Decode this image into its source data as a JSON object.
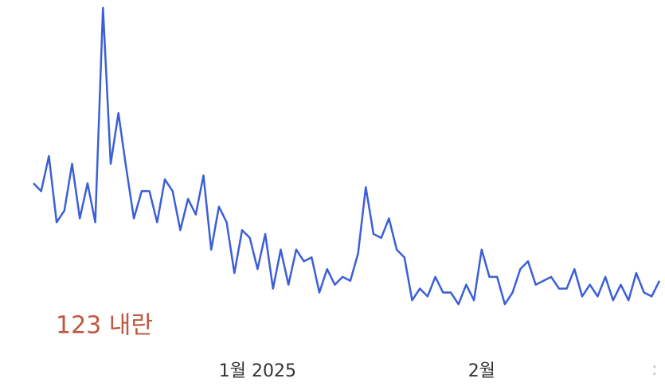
{
  "chart_data": {
    "type": "line",
    "annotation": "123 내란",
    "edge_label": ":",
    "categories": [
      null,
      null,
      null,
      null,
      null,
      null,
      null,
      null,
      null,
      null,
      null,
      null,
      null,
      null,
      null,
      null,
      null,
      null,
      null,
      null,
      null,
      null,
      null,
      null,
      null,
      null,
      null,
      null,
      null,
      "1월 2025",
      null,
      null,
      null,
      null,
      null,
      null,
      null,
      null,
      null,
      null,
      null,
      null,
      null,
      null,
      null,
      null,
      null,
      null,
      null,
      null,
      null,
      null,
      null,
      null,
      null,
      null,
      null,
      null,
      "2월",
      null,
      null,
      null,
      null,
      null,
      null,
      null,
      null,
      null,
      null,
      null,
      null,
      null,
      null,
      null,
      null,
      null,
      null,
      null,
      null,
      null,
      null,
      null
    ],
    "series": [
      {
        "color": "#3c5fd6",
        "values": [
          53,
          51,
          60,
          43,
          46,
          58,
          44,
          53,
          43,
          98,
          58,
          71,
          57,
          44,
          51,
          51,
          43,
          54,
          51,
          41,
          49,
          45,
          55,
          36,
          47,
          43,
          30,
          41,
          39,
          31,
          40,
          26,
          36,
          27,
          36,
          33,
          34,
          25,
          31,
          27,
          29,
          28,
          35,
          52,
          40,
          39,
          44,
          36,
          34,
          23,
          26,
          24,
          29,
          25,
          25,
          22,
          27,
          23,
          36,
          29,
          29,
          22,
          25,
          31,
          33,
          27,
          28,
          29,
          26,
          26,
          31,
          24,
          27,
          24,
          29,
          23,
          27,
          23,
          30,
          25,
          24,
          28
        ]
      }
    ],
    "ylim": [
      0,
      100
    ]
  }
}
